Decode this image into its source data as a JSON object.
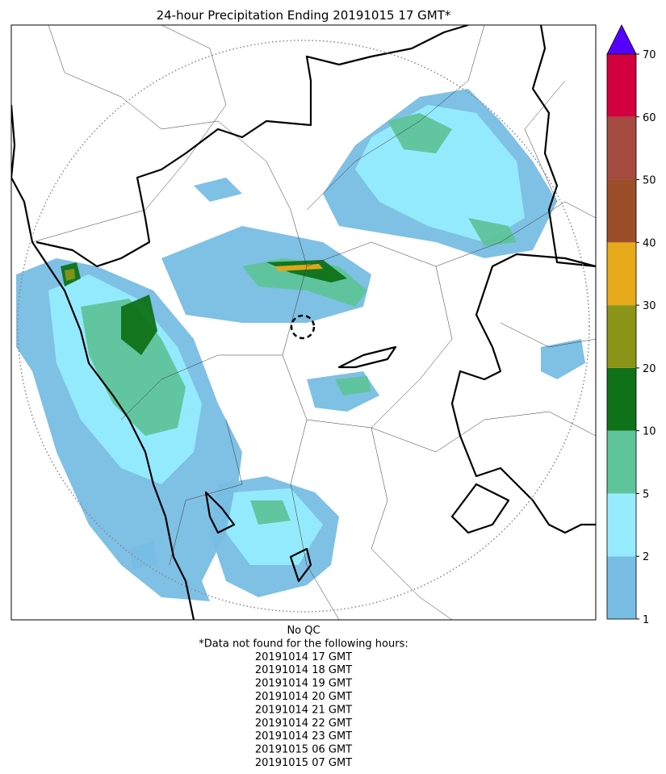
{
  "title": "24-hour Precipitation Ending 20191015 17 GMT*",
  "colorbar": {
    "levels": [
      1,
      2,
      5,
      10,
      20,
      30,
      40,
      50,
      60,
      70
    ],
    "colors": [
      "#78bde4",
      "#96ecfe",
      "#5ec49a",
      "#0f7218",
      "#8a9518",
      "#e6aa1a",
      "#9c4e28",
      "#a44a40",
      "#d2003e"
    ],
    "extend_color": "#5500ff"
  },
  "footer": {
    "lines": [
      "No QC",
      "*Data not found for the following hours:",
      "20191014 17 GMT",
      "20191014 18 GMT",
      "20191014 19 GMT",
      "20191014 20 GMT",
      "20191014 21 GMT",
      "20191014 22 GMT",
      "20191014 23 GMT",
      "20191015 06 GMT",
      "20191015 07 GMT"
    ]
  }
}
